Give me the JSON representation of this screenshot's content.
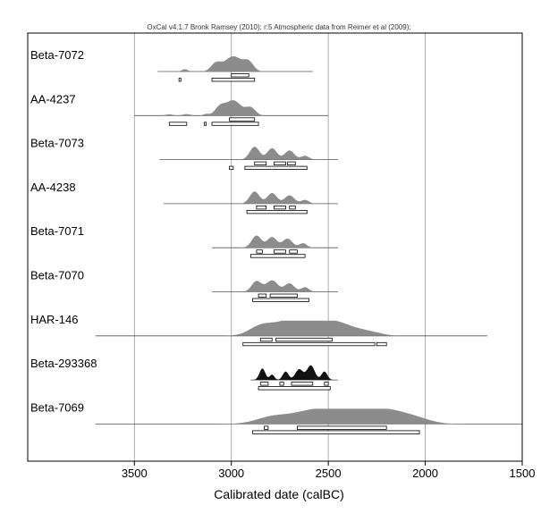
{
  "chart_data": {
    "type": "area",
    "title": "OxCal v4.1.7 Bronk Ramsey (2010); r:5 Atmospheric data from Reimer et al (2009);",
    "xlabel": "Calibrated date (calBC)",
    "x_reversed": true,
    "xlim": [
      4050,
      1500
    ],
    "x_ticks": [
      3500,
      3000,
      2500,
      2000,
      1500
    ],
    "x_tick_labels": [
      "3500",
      "3000",
      "2500",
      "2000",
      "1500"
    ],
    "grid": "vertical",
    "colors": {
      "prior": "#8c8c8c",
      "highlight": "#111111",
      "axis": "#000000",
      "grid": "#9a9a9a"
    },
    "series": [
      {
        "name": "Beta-7072",
        "range": [
          3380,
          2580
        ],
        "peaks": [
          [
            3240,
            0.15,
            15
          ],
          [
            3080,
            0.5,
            25
          ],
          [
            2990,
            1.0,
            45
          ],
          [
            2910,
            0.55,
            25
          ]
        ],
        "ranges_1sigma": [
          [
            3000,
            2910
          ]
        ],
        "ranges_2sigma": [
          [
            3270,
            3260
          ],
          [
            3100,
            2880
          ]
        ],
        "dark": false
      },
      {
        "name": "AA-4237",
        "range": [
          3500,
          2500
        ],
        "peaks": [
          [
            3320,
            0.08,
            20
          ],
          [
            3230,
            0.1,
            20
          ],
          [
            3130,
            0.1,
            15
          ],
          [
            3060,
            0.5,
            25
          ],
          [
            2990,
            1.0,
            40
          ],
          [
            2900,
            0.5,
            25
          ]
        ],
        "ranges_1sigma": [
          [
            3010,
            2880
          ]
        ],
        "ranges_2sigma": [
          [
            3320,
            3230
          ],
          [
            3140,
            3130
          ],
          [
            3100,
            2860
          ]
        ],
        "dark": false
      },
      {
        "name": "Beta-7073",
        "range": [
          3370,
          2450
        ],
        "peaks": [
          [
            2880,
            0.85,
            25
          ],
          [
            2790,
            0.75,
            25
          ],
          [
            2700,
            0.6,
            25
          ],
          [
            2620,
            0.25,
            20
          ]
        ],
        "ranges_1sigma": [
          [
            2880,
            2820
          ],
          [
            2780,
            2720
          ],
          [
            2710,
            2670
          ]
        ],
        "ranges_2sigma": [
          [
            3010,
            2990
          ],
          [
            2930,
            2610
          ]
        ],
        "dark": false
      },
      {
        "name": "AA-4238",
        "range": [
          3350,
          2450
        ],
        "peaks": [
          [
            2880,
            0.8,
            25
          ],
          [
            2790,
            0.7,
            25
          ],
          [
            2700,
            0.55,
            25
          ],
          [
            2620,
            0.25,
            20
          ]
        ],
        "ranges_1sigma": [
          [
            2870,
            2820
          ],
          [
            2780,
            2720
          ],
          [
            2700,
            2670
          ]
        ],
        "ranges_2sigma": [
          [
            2920,
            2610
          ]
        ],
        "dark": false
      },
      {
        "name": "Beta-7071",
        "range": [
          3100,
          2450
        ],
        "peaks": [
          [
            2870,
            0.8,
            25
          ],
          [
            2790,
            0.7,
            25
          ],
          [
            2710,
            0.6,
            25
          ],
          [
            2630,
            0.3,
            20
          ]
        ],
        "ranges_1sigma": [
          [
            2870,
            2840
          ],
          [
            2780,
            2720
          ],
          [
            2700,
            2660
          ]
        ],
        "ranges_2sigma": [
          [
            2900,
            2620
          ]
        ],
        "dark": false
      },
      {
        "name": "Beta-7070",
        "range": [
          3100,
          2450
        ],
        "peaks": [
          [
            2870,
            0.7,
            25
          ],
          [
            2790,
            0.75,
            30
          ],
          [
            2700,
            0.55,
            25
          ],
          [
            2620,
            0.3,
            20
          ]
        ],
        "ranges_1sigma": [
          [
            2860,
            2820
          ],
          [
            2800,
            2660
          ]
        ],
        "ranges_2sigma": [
          [
            2890,
            2600
          ]
        ],
        "dark": false
      },
      {
        "name": "HAR-146",
        "range": [
          3700,
          1680
        ],
        "peaks": [
          [
            2850,
            0.55,
            60
          ],
          [
            2700,
            0.85,
            90
          ],
          [
            2560,
            0.9,
            90
          ],
          [
            2420,
            0.55,
            80
          ],
          [
            2280,
            0.2,
            60
          ]
        ],
        "ranges_1sigma": [
          [
            2850,
            2790
          ],
          [
            2770,
            2480
          ]
        ],
        "ranges_2sigma": [
          [
            2940,
            2260
          ],
          [
            2250,
            2200
          ]
        ],
        "dark": false
      },
      {
        "name": "Beta-293368",
        "range": [
          2900,
          2450
        ],
        "peaks": [
          [
            2840,
            0.75,
            15
          ],
          [
            2790,
            0.35,
            12
          ],
          [
            2720,
            0.55,
            15
          ],
          [
            2650,
            0.7,
            20
          ],
          [
            2590,
            0.95,
            20
          ],
          [
            2520,
            0.55,
            15
          ]
        ],
        "ranges_1sigma": [
          [
            2850,
            2810
          ],
          [
            2750,
            2730
          ],
          [
            2690,
            2580
          ],
          [
            2520,
            2500
          ]
        ],
        "ranges_2sigma": [
          [
            2860,
            2490
          ]
        ],
        "dark": true
      },
      {
        "name": "Beta-7069",
        "range": [
          3700,
          1500
        ],
        "peaks": [
          [
            2800,
            0.35,
            80
          ],
          [
            2600,
            0.7,
            120
          ],
          [
            2400,
            0.9,
            120
          ],
          [
            2200,
            0.75,
            100
          ],
          [
            2050,
            0.3,
            80
          ]
        ],
        "ranges_1sigma": [
          [
            2830,
            2810
          ],
          [
            2660,
            2200
          ]
        ],
        "ranges_2sigma": [
          [
            2890,
            2030
          ]
        ],
        "dark": false
      }
    ]
  }
}
